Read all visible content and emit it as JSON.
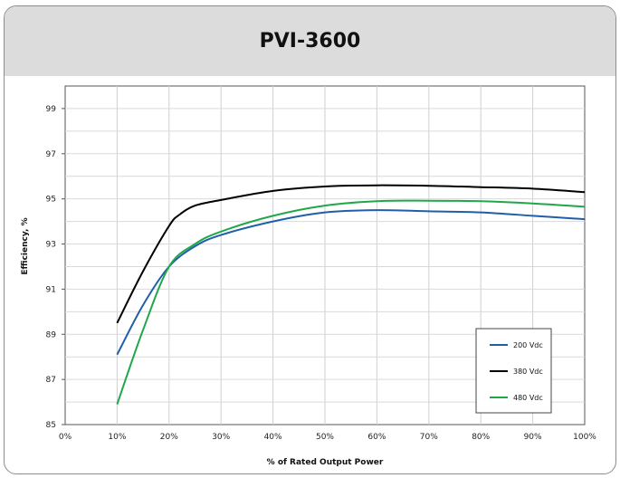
{
  "chart_data": {
    "type": "line",
    "title": "PVI-3600",
    "xlabel": "% of Rated Output Power",
    "ylabel": "Efficiency, %",
    "x_ticks": [
      "0%",
      "10%",
      "20%",
      "30%",
      "40%",
      "50%",
      "60%",
      "70%",
      "80%",
      "90%",
      "100%"
    ],
    "y_ticks": [
      "85",
      "87",
      "89",
      "91",
      "93",
      "95",
      "97",
      "99"
    ],
    "xlim": [
      0,
      100
    ],
    "ylim": [
      85,
      100
    ],
    "grid": true,
    "legend_position": "bottom-right",
    "series": [
      {
        "name": "200 Vdc",
        "color": "#1f5fa8",
        "x": [
          10,
          15,
          20,
          25,
          30,
          40,
          50,
          60,
          70,
          80,
          90,
          100
        ],
        "y": [
          88.1,
          90.3,
          92.0,
          92.9,
          93.4,
          94.0,
          94.4,
          94.5,
          94.45,
          94.4,
          94.25,
          94.1
        ]
      },
      {
        "name": "380 Vdc",
        "color": "#000000",
        "x": [
          10,
          15,
          20,
          22,
          25,
          30,
          40,
          50,
          60,
          70,
          80,
          90,
          100
        ],
        "y": [
          89.5,
          91.8,
          93.8,
          94.3,
          94.7,
          94.95,
          95.35,
          95.55,
          95.6,
          95.58,
          95.52,
          95.45,
          95.3
        ]
      },
      {
        "name": "480 Vdc",
        "color": "#1ea84a",
        "x": [
          10,
          15,
          20,
          25,
          30,
          40,
          50,
          60,
          70,
          80,
          90,
          100
        ],
        "y": [
          85.9,
          89.2,
          92.0,
          93.0,
          93.55,
          94.25,
          94.7,
          94.9,
          94.92,
          94.9,
          94.8,
          94.65
        ]
      }
    ]
  }
}
